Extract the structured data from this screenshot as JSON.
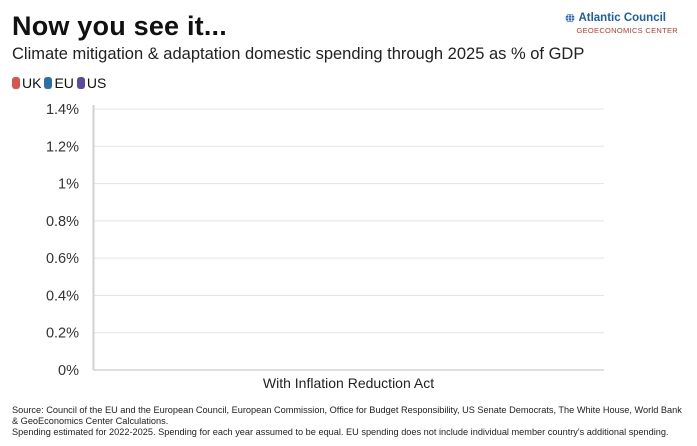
{
  "header": {
    "title": "Now you see it...",
    "subtitle": "Climate mitigation & adaptation domestic spending through 2025 as % of GDP"
  },
  "brand": {
    "name": "Atlantic Council",
    "sub": "GEOECONOMICS CENTER",
    "icon": "globe-icon",
    "color": "#1d5ea8",
    "sub_color": "#c0392b"
  },
  "legend": [
    {
      "label": "UK",
      "color": "#d9534f"
    },
    {
      "label": "EU",
      "color": "#2a6fa8"
    },
    {
      "label": "US",
      "color": "#5b4aa0"
    }
  ],
  "chart_data": {
    "type": "bar",
    "categories": [
      "With Inflation Reduction Act"
    ],
    "series": [
      {
        "name": "UK",
        "values": [
          null
        ]
      },
      {
        "name": "EU",
        "values": [
          null
        ]
      },
      {
        "name": "US",
        "values": [
          null
        ]
      }
    ],
    "ylim": [
      0,
      1.4
    ],
    "yticks": [
      "0%",
      "0.2%",
      "0.4%",
      "0.6%",
      "0.8%",
      "1%",
      "1.2%",
      "1.4%"
    ],
    "grid": true,
    "legend_position": "top-left"
  },
  "footer": {
    "source_line1": "Source: Council of the EU and the European Council, European Commission, Office for Budget Responsibility, US Senate Democrats, The White House, World Bank",
    "source_line2": "& GeoEconomics Center Calculations.",
    "source_line3": "Spending estimated for 2022-2025. Spending for each year assumed to be equal. EU spending does not include individual member country's additional spending."
  }
}
